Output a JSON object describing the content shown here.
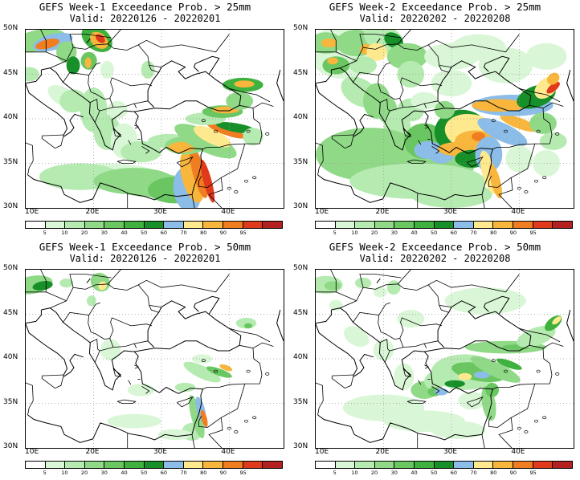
{
  "colorbar": {
    "colors": [
      "#ffffff",
      "#d9f7d6",
      "#b5eab0",
      "#8fd987",
      "#69c661",
      "#3fb13e",
      "#18902a",
      "#8bbde8",
      "#ffe98f",
      "#f8b63d",
      "#f07d1f",
      "#e0391b",
      "#b41f1f"
    ],
    "labels": [
      "5",
      "10",
      "20",
      "30",
      "40",
      "50",
      "60",
      "70",
      "80",
      "90",
      "95"
    ]
  },
  "axes": {
    "lat_labels": [
      "50N",
      "45N",
      "40N",
      "35N",
      "30N"
    ],
    "lon_labels": [
      "10E",
      "20E",
      "30E",
      "40E"
    ]
  },
  "panels": [
    {
      "id": "p1",
      "title": "GEFS Week-1 Exceedance Prob. > 25mm",
      "subtitle": "Valid: 20220126 - 20220201"
    },
    {
      "id": "p2",
      "title": "GEFS Week-2 Exceedance Prob. > 25mm",
      "subtitle": "Valid: 20220202 - 20220208"
    },
    {
      "id": "p3",
      "title": "GEFS Week-1 Exceedance Prob. > 50mm",
      "subtitle": "Valid: 20220126 - 20220201"
    },
    {
      "id": "p4",
      "title": "GEFS Week-2 Exceedance Prob. > 50mm",
      "subtitle": "Valid: 20220202 - 20220208"
    }
  ]
}
